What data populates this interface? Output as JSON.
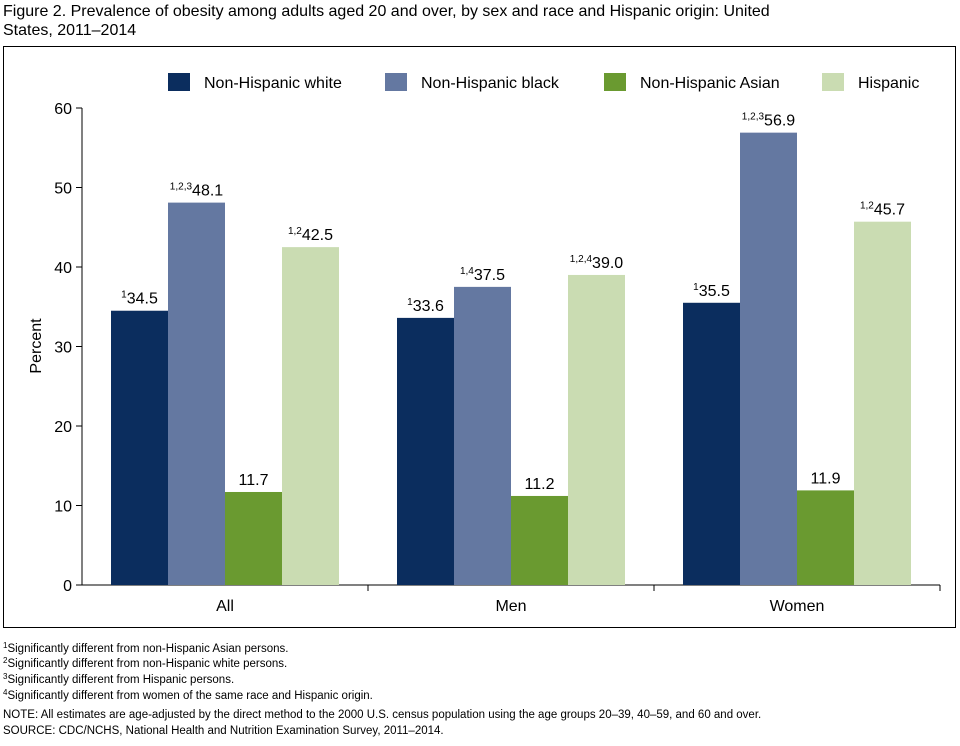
{
  "chart_data": {
    "type": "bar",
    "title": "Figure 2. Prevalence of obesity among adults aged 20 and over, by sex and race and Hispanic origin: United States, 2011–2014",
    "y_label": "Percent",
    "categories": [
      "All",
      "Men",
      "Women"
    ],
    "series": [
      {
        "name": "Non-Hispanic white",
        "color": "#0b2d5e",
        "values": [
          34.5,
          33.6,
          35.5
        ],
        "value_labels": [
          "34.5",
          "33.6",
          "35.5"
        ],
        "footnote_marks": [
          "1",
          "1",
          "1"
        ]
      },
      {
        "name": "Non-Hispanic black",
        "color": "#6478a1",
        "values": [
          48.1,
          37.5,
          56.9
        ],
        "value_labels": [
          "48.1",
          "37.5",
          "56.9"
        ],
        "footnote_marks": [
          "1,2,3",
          "1,4",
          "1,2,3"
        ]
      },
      {
        "name": "Non-Hispanic Asian",
        "color": "#6a9a30",
        "values": [
          11.7,
          11.2,
          11.9
        ],
        "value_labels": [
          "11.7",
          "11.2",
          "11.9"
        ],
        "footnote_marks": [
          null,
          null,
          null
        ]
      },
      {
        "name": "Hispanic",
        "color": "#cadcb2",
        "values": [
          42.5,
          39.0,
          45.7
        ],
        "value_labels": [
          "42.5",
          "39.0",
          "45.7"
        ],
        "footnote_marks": [
          "1,2",
          "1,2,4",
          "1,2"
        ]
      }
    ],
    "ylim": [
      0,
      60
    ],
    "yticks": [
      0,
      10,
      20,
      30,
      40,
      50,
      60
    ],
    "grid": false,
    "legend_position": "top",
    "footnotes": [
      {
        "mark": "1",
        "text": "Significantly different from non-Hispanic Asian persons."
      },
      {
        "mark": "2",
        "text": "Significantly different from non-Hispanic white persons."
      },
      {
        "mark": "3",
        "text": "Significantly different from Hispanic persons."
      },
      {
        "mark": "4",
        "text": "Significantly different from women of the same race and Hispanic origin."
      }
    ],
    "note": "NOTE: All estimates are age-adjusted by the direct method to the 2000 U.S. census population using the age groups 20–39, 40–59, and 60 and over.",
    "source": "SOURCE: CDC/NCHS, National Health and Nutrition Examination Survey, 2011–2014."
  }
}
